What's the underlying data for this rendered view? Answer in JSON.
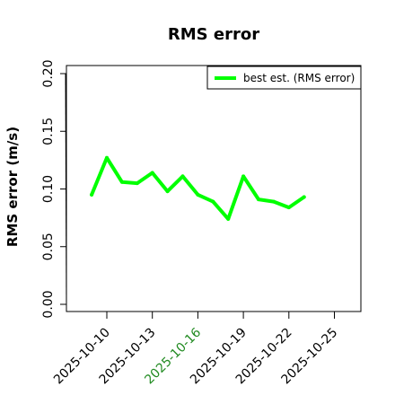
{
  "chart_data": {
    "type": "line",
    "title": "RMS error",
    "xlabel": "",
    "ylabel": "RMS error (m/s)",
    "ylim": [
      0.0,
      0.2
    ],
    "y_ticks": [
      "0.00",
      "0.05",
      "0.10",
      "0.15",
      "0.20"
    ],
    "x_ticks": [
      {
        "date": "2025-10-10",
        "label": "2025-10-10",
        "color": "#000000"
      },
      {
        "date": "2025-10-13",
        "label": "2025-10-13",
        "color": "#000000"
      },
      {
        "date": "2025-10-16",
        "label": "2025-10-16",
        "color": "#228B22"
      },
      {
        "date": "2025-10-19",
        "label": "2025-10-19",
        "color": "#000000"
      },
      {
        "date": "2025-10-22",
        "label": "2025-10-22",
        "color": "#000000"
      },
      {
        "date": "2025-10-25",
        "label": "2025-10-25",
        "color": "#000000"
      }
    ],
    "xlim": [
      "2025-10-08",
      "2025-10-27"
    ],
    "x": [
      "2025-10-09",
      "2025-10-10",
      "2025-10-11",
      "2025-10-12",
      "2025-10-13",
      "2025-10-14",
      "2025-10-15",
      "2025-10-16",
      "2025-10-17",
      "2025-10-18",
      "2025-10-19",
      "2025-10-20",
      "2025-10-21",
      "2025-10-22",
      "2025-10-23"
    ],
    "series": [
      {
        "name": "best est. (RMS error)",
        "color": "#00ff00",
        "values": [
          0.095,
          0.127,
          0.106,
          0.105,
          0.114,
          0.098,
          0.111,
          0.095,
          0.089,
          0.074,
          0.111,
          0.091,
          0.089,
          0.084,
          0.093
        ]
      }
    ],
    "grid": false,
    "legend_position": "top-right"
  }
}
